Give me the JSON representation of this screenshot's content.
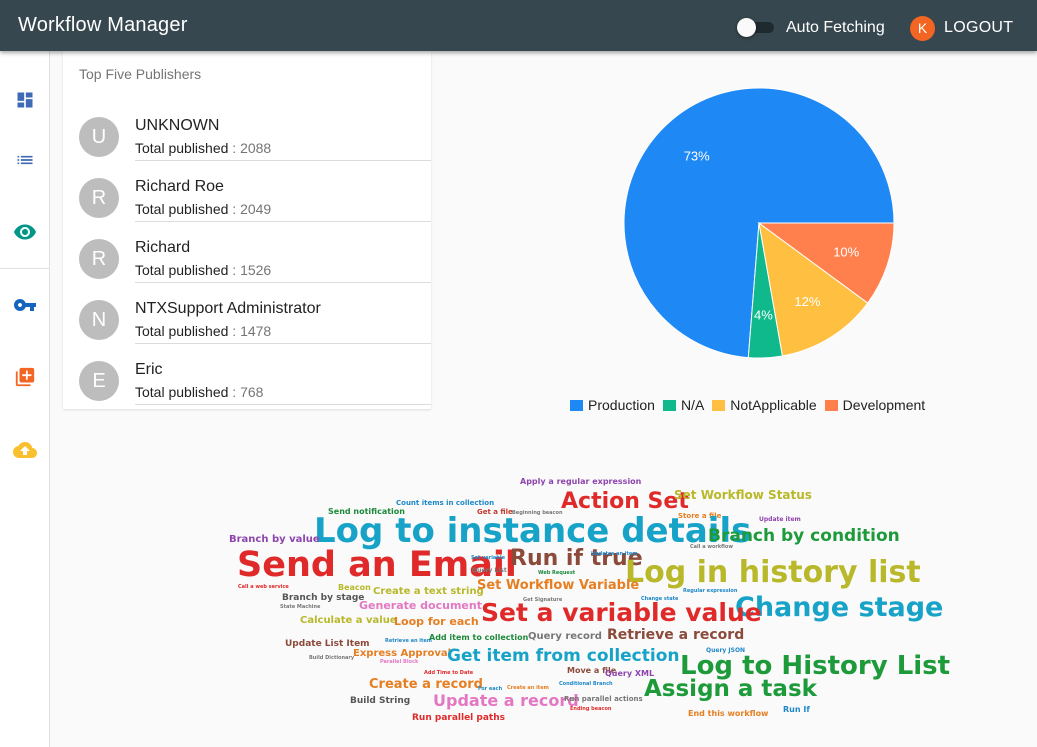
{
  "header": {
    "title": "Workflow Manager",
    "auto_fetching_label": "Auto Fetching",
    "logout_avatar": "K",
    "logout_label": "LOGOUT"
  },
  "sidebar": {
    "icons": [
      "dashboard-icon",
      "list-icon",
      "eye-icon",
      "key-icon",
      "add-box-icon",
      "cloud-upload-icon"
    ],
    "accent": "#009688"
  },
  "publishers": {
    "title": "Top Five Publishers",
    "count_label": "Total published",
    "separator": " : ",
    "items": [
      {
        "initial": "U",
        "name": "UNKNOWN",
        "count": "2088"
      },
      {
        "initial": "R",
        "name": "Richard Roe",
        "count": "2049"
      },
      {
        "initial": "R",
        "name": "Richard",
        "count": "1526"
      },
      {
        "initial": "N",
        "name": "NTXSupport Administrator",
        "count": "1478"
      },
      {
        "initial": "E",
        "name": "Eric",
        "count": "768"
      }
    ]
  },
  "chart_data": {
    "type": "pie",
    "title": "",
    "slices": [
      {
        "label": "Production",
        "value": 73,
        "display": "73%",
        "color": "#1e88f5"
      },
      {
        "label": "N/A",
        "value": 4,
        "display": "4%",
        "color": "#10b98c"
      },
      {
        "label": "NotApplicable",
        "value": 12,
        "display": "12%",
        "color": "#ffbf40"
      },
      {
        "label": "Development",
        "value": 10,
        "display": "10%",
        "color": "#ff7f4d"
      }
    ],
    "start_angle_deg": 0,
    "direction": "clockwise",
    "legend_position": "bottom"
  },
  "word_cloud": [
    {
      "text": "Apply a regular expression",
      "color": "#8e44ad"
    },
    {
      "text": "Action Set",
      "color": "#e02a2a"
    },
    {
      "text": "Set Workflow Status",
      "color": "#b8b82a"
    },
    {
      "text": "Send notification",
      "color": "#1d8a3a"
    },
    {
      "text": "Count items in collection",
      "color": "#1e88c8"
    },
    {
      "text": "Get a file",
      "color": "#c0392b"
    },
    {
      "text": "Beginning beacon",
      "color": "#777777"
    },
    {
      "text": "Store a file",
      "color": "#e67e22"
    },
    {
      "text": "Update item",
      "color": "#8e44ad"
    },
    {
      "text": "Log to instance details",
      "color": "#17a2c8"
    },
    {
      "text": "Branch by condition",
      "color": "#1d9a3a"
    },
    {
      "text": "Branch by value",
      "color": "#8e44ad"
    },
    {
      "text": "Call a workflow",
      "color": "#777777"
    },
    {
      "text": "Send an Email",
      "color": "#e02a2a"
    },
    {
      "text": "Run if true",
      "color": "#8b4a3a"
    },
    {
      "text": "Set variable",
      "color": "#1e88c8"
    },
    {
      "text": "Updates an item",
      "color": "#1e88c8"
    },
    {
      "text": "Query List",
      "color": "#777777"
    },
    {
      "text": "Web Request",
      "color": "#1d8a3a"
    },
    {
      "text": "Log in history list",
      "color": "#b8b82a"
    },
    {
      "text": "Call a web service",
      "color": "#e02a2a"
    },
    {
      "text": "Beacon",
      "color": "#b8b82a"
    },
    {
      "text": "Set Workflow Variable",
      "color": "#e67e22"
    },
    {
      "text": "Change state",
      "color": "#1e88c8"
    },
    {
      "text": "Regular expression",
      "color": "#1e88c8"
    },
    {
      "text": "Branch by stage",
      "color": "#555555"
    },
    {
      "text": "Create a text string",
      "color": "#b8b82a"
    },
    {
      "text": "Get Signature",
      "color": "#777777"
    },
    {
      "text": "Change stage",
      "color": "#17a2c8"
    },
    {
      "text": "State Machine",
      "color": "#777777"
    },
    {
      "text": "Generate document",
      "color": "#e377c2"
    },
    {
      "text": "Set a variable value",
      "color": "#e02a2a"
    },
    {
      "text": "Calculate a value",
      "color": "#b8b82a"
    },
    {
      "text": "Loop for each",
      "color": "#e67e22"
    },
    {
      "text": "Query record",
      "color": "#777777"
    },
    {
      "text": "Retrieve a record",
      "color": "#8b4a3a"
    },
    {
      "text": "Update List Item",
      "color": "#8b4a3a"
    },
    {
      "text": "Retrieve an item",
      "color": "#1e88c8"
    },
    {
      "text": "Add item to collection",
      "color": "#1d8a3a"
    },
    {
      "text": "Express Approval",
      "color": "#e67e22"
    },
    {
      "text": "Get item from collection",
      "color": "#17a2c8"
    },
    {
      "text": "Query JSON",
      "color": "#1e88c8"
    },
    {
      "text": "Build Dictionary",
      "color": "#777777"
    },
    {
      "text": "Parallel Block",
      "color": "#e377c2"
    },
    {
      "text": "Log to History List",
      "color": "#1d9a3a"
    },
    {
      "text": "Add Time to Date",
      "color": "#e02a2a"
    },
    {
      "text": "Move a file",
      "color": "#8b4a3a"
    },
    {
      "text": "Query XML",
      "color": "#8e44ad"
    },
    {
      "text": "Create a record",
      "color": "#e67e22"
    },
    {
      "text": "Conditional Branch",
      "color": "#1e88c8"
    },
    {
      "text": "For each",
      "color": "#1e88c8"
    },
    {
      "text": "Create an item",
      "color": "#e67e22"
    },
    {
      "text": "Assign a task",
      "color": "#1d9a3a"
    },
    {
      "text": "Build String",
      "color": "#555555"
    },
    {
      "text": "Update a record",
      "color": "#e377c2"
    },
    {
      "text": "Run parallel actions",
      "color": "#777777"
    },
    {
      "text": "Ending beacon",
      "color": "#e02a2a"
    },
    {
      "text": "End this workflow",
      "color": "#e67e22"
    },
    {
      "text": "Run If",
      "color": "#1e88c8"
    },
    {
      "text": "Run parallel paths",
      "color": "#e02a2a"
    }
  ]
}
